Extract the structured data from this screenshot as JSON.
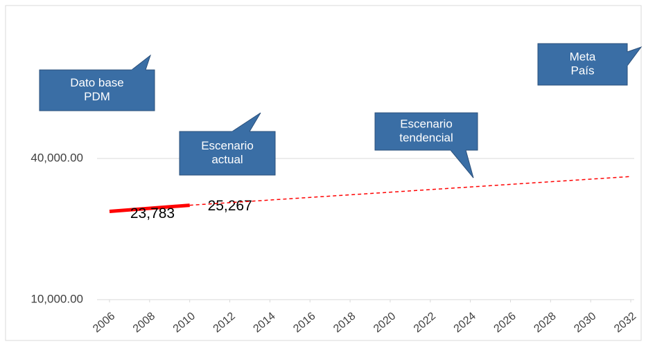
{
  "chart_data": {
    "type": "line",
    "yscale": "log",
    "xlim": [
      2006,
      2032
    ],
    "xticks": [
      2006,
      2008,
      2010,
      2012,
      2014,
      2016,
      2018,
      2020,
      2022,
      2024,
      2026,
      2028,
      2030,
      2032
    ],
    "ylim": [
      10000,
      160000
    ],
    "yticks": [
      {
        "value": 10000,
        "label": "10,000.00"
      },
      {
        "value": 40000,
        "label": "40,000.00"
      }
    ],
    "grid": true,
    "series": [
      {
        "color": "#ff0000",
        "style": "solid",
        "x": [
          2006,
          2010
        ],
        "values": [
          23783,
          25267
        ],
        "value_labels": [
          "23,783",
          "25,267"
        ]
      },
      {
        "color": "#ff0000",
        "style": "dashed",
        "x": [
          2010,
          2032
        ],
        "values": [
          25267,
          33500
        ]
      }
    ],
    "annotations": [
      {
        "lines": [
          "Dato base",
          "PDM"
        ]
      },
      {
        "lines": [
          "Escenario",
          "actual"
        ]
      },
      {
        "lines": [
          "Escenario",
          "tendencial"
        ]
      },
      {
        "lines": [
          "Meta",
          "País"
        ]
      }
    ]
  }
}
